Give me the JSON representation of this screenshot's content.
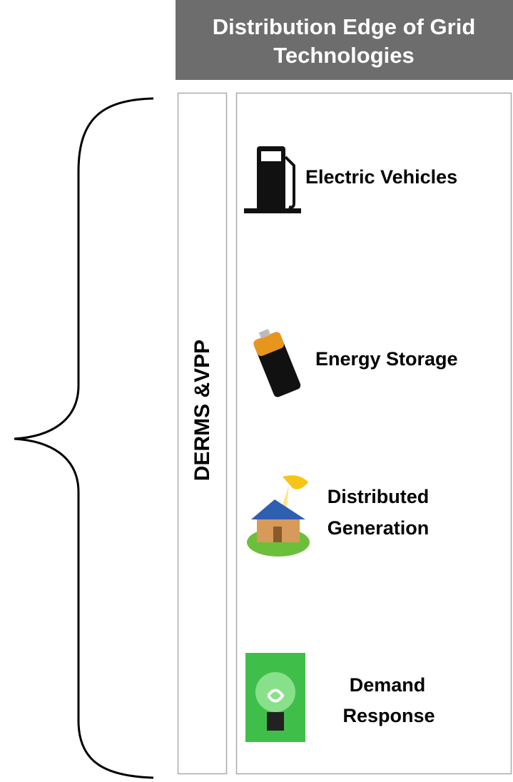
{
  "header": {
    "title_lines": [
      "Distribution Edge of Grid",
      "Technologies"
    ]
  },
  "side_label": "DERMS &VPP",
  "items": [
    {
      "label_lines": [
        "Electric Vehicles"
      ]
    },
    {
      "label_lines": [
        "Energy Storage"
      ]
    },
    {
      "label_lines": [
        "Distributed",
        "Generation"
      ]
    },
    {
      "label_lines": [
        "Demand",
        "Response"
      ]
    }
  ]
}
